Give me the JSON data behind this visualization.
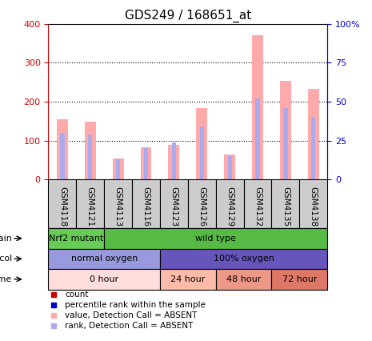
{
  "title": "GDS249 / 168651_at",
  "samples": [
    "GSM4118",
    "GSM4121",
    "GSM4113",
    "GSM4116",
    "GSM4123",
    "GSM4126",
    "GSM4129",
    "GSM4132",
    "GSM4135",
    "GSM4138"
  ],
  "values_absent": [
    155,
    148,
    53,
    83,
    90,
    183,
    65,
    370,
    254,
    232
  ],
  "ranks_absent": [
    30,
    29,
    13,
    20,
    24,
    34,
    15,
    52,
    46,
    40
  ],
  "ylim_left": [
    0,
    400
  ],
  "ylim_right": [
    0,
    100
  ],
  "yticks_left": [
    0,
    100,
    200,
    300,
    400
  ],
  "yticks_right": [
    0,
    25,
    50,
    75,
    100
  ],
  "strain_labels": [
    {
      "label": "Nrf2 mutant",
      "span": [
        0,
        2
      ],
      "color": "#66cc55"
    },
    {
      "label": "wild type",
      "span": [
        2,
        10
      ],
      "color": "#55bb44"
    }
  ],
  "protocol_labels": [
    {
      "label": "normal oxygen",
      "span": [
        0,
        4
      ],
      "color": "#9999dd"
    },
    {
      "label": "100% oxygen",
      "span": [
        4,
        10
      ],
      "color": "#6655bb"
    }
  ],
  "time_labels": [
    {
      "label": "0 hour",
      "span": [
        0,
        4
      ],
      "color": "#ffdddd"
    },
    {
      "label": "24 hour",
      "span": [
        4,
        6
      ],
      "color": "#ffbbaa"
    },
    {
      "label": "48 hour",
      "span": [
        6,
        8
      ],
      "color": "#ee9988"
    },
    {
      "label": "72 hour",
      "span": [
        8,
        10
      ],
      "color": "#dd7766"
    }
  ],
  "bar_color_absent": "#ffaaaa",
  "rank_color_absent": "#aaaaee",
  "left_axis_color": "#cc0000",
  "right_axis_color": "#0000cc",
  "grid_color": "black",
  "plot_bg": "#ffffff",
  "xlabel_bg": "#cccccc"
}
